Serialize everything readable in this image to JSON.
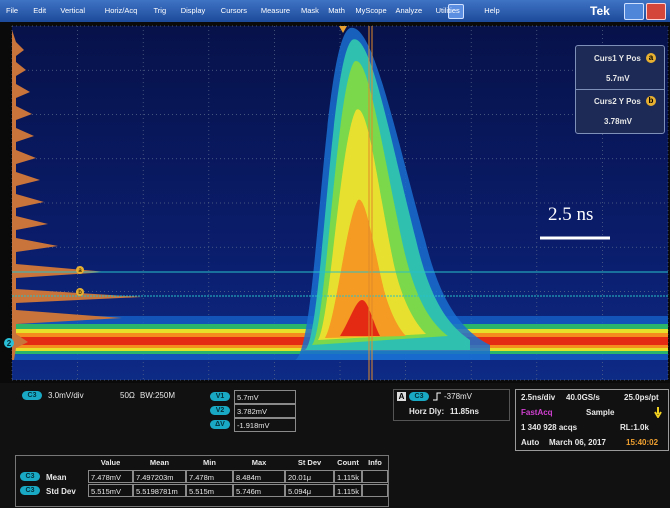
{
  "menu": {
    "items": [
      "File",
      "Edit",
      "Vertical",
      "Horiz/Acq",
      "Trig",
      "Display",
      "Cursors",
      "Measure",
      "Mask",
      "Math",
      "MyScope",
      "Analyze",
      "Utilities",
      "Help"
    ],
    "logo": "Tek"
  },
  "cursor_panel": {
    "curs1_label": "Curs1 Y Pos",
    "curs1_marker": "a",
    "curs1_value": "5.7mV",
    "curs2_label": "Curs2 Y Pos",
    "curs2_marker": "b",
    "curs2_value": "3.78mV"
  },
  "display": {
    "scale_annotation": "2.5 ns",
    "cursor_markers": [
      "a",
      "b"
    ],
    "channel_marker": "2"
  },
  "channel_readout": {
    "channel": "C3",
    "scale": "3.0mV/div",
    "impedance": "50Ω",
    "bandwidth": "BW:250M"
  },
  "cursor_readout": {
    "rows": [
      {
        "label": "V1",
        "value": "5.7mV"
      },
      {
        "label": "V2",
        "value": "3.782mV"
      },
      {
        "label": "ΔV",
        "value": "-1.918mV"
      }
    ]
  },
  "trigger": {
    "source_letter": "A",
    "channel": "C3",
    "level": "-378mV",
    "horz_delay_label": "Horz Dly:",
    "horz_delay": "11.85ns"
  },
  "acquisition": {
    "time_scale": "2.5ns/div",
    "sample_rate": "40.0GS/s",
    "resolution": "25.0ps/pt",
    "mode": "FastAcq",
    "sampling": "Sample",
    "acqs": "1 340 928 acqs",
    "record_length": "RL:1.0k",
    "trigger_mode": "Auto",
    "date": "March 06, 2017",
    "time": "15:40:02"
  },
  "measurements": {
    "headers": [
      "Value",
      "Mean",
      "Min",
      "Max",
      "St Dev",
      "Count",
      "Info"
    ],
    "rows": [
      {
        "channel": "C3",
        "label": "Mean",
        "cells": [
          "7.478mV",
          "7.497203m",
          "7.478m",
          "8.484m",
          "20.01μ",
          "1.115k"
        ]
      },
      {
        "channel": "C3",
        "label": "Std Dev",
        "cells": [
          "5.515mV",
          "5.5198781m",
          "5.515m",
          "5.746m",
          "5.094μ",
          "1.115k"
        ]
      }
    ]
  }
}
